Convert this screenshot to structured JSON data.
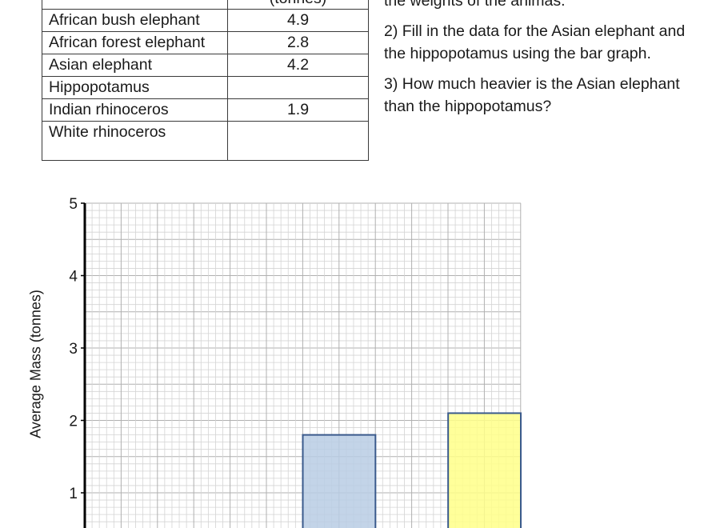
{
  "table": {
    "header_value_unit": "(tonnes)",
    "rows": [
      {
        "animal": "African bush elephant",
        "mass": "4.9"
      },
      {
        "animal": "African forest elephant",
        "mass": "2.8"
      },
      {
        "animal": "Asian elephant",
        "mass": "4.2"
      },
      {
        "animal": "Hippopotamus",
        "mass": ""
      },
      {
        "animal": "Indian rhinoceros",
        "mass": "1.9"
      },
      {
        "animal": "White rhinoceros",
        "mass": ""
      }
    ]
  },
  "questions": {
    "partial_line": "the weights of the animas.",
    "q2": "2) Fill in the data for the Asian elephant and the hippopotamus using the bar graph.",
    "q3": "3) How much heavier is the Asian elephant than the hippopotamus?"
  },
  "chart_data": {
    "type": "bar",
    "ylabel": "Average Mass (tonnes)",
    "xlabel": "",
    "ylim": [
      0,
      5
    ],
    "yticks": [
      "1",
      "2",
      "3",
      "4",
      "5"
    ],
    "grid": true,
    "grid_minor_step": 0.1,
    "grid_major_step": 0.5,
    "categories": [
      "",
      "",
      "",
      "",
      "",
      ""
    ],
    "values": [
      null,
      null,
      null,
      1.8,
      null,
      2.1
    ],
    "bar_colors": [
      "",
      "",
      "",
      "#b8cce4",
      "",
      "#ffff88"
    ],
    "bar_outline_color": "#3a5a8c"
  }
}
